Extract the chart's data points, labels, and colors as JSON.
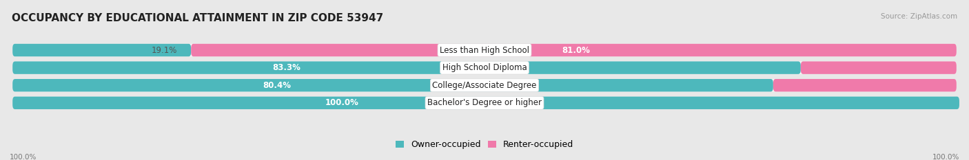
{
  "title": "OCCUPANCY BY EDUCATIONAL ATTAINMENT IN ZIP CODE 53947",
  "source": "Source: ZipAtlas.com",
  "categories": [
    "Less than High School",
    "High School Diploma",
    "College/Associate Degree",
    "Bachelor's Degree or higher"
  ],
  "owner_pct": [
    19.1,
    83.3,
    80.4,
    100.0
  ],
  "renter_pct": [
    81.0,
    16.7,
    19.6,
    0.0
  ],
  "owner_color": "#4db8bc",
  "renter_color": "#f07aaa",
  "bg_color": "#e8e8e8",
  "bar_bg_color": "#f7f7f7",
  "bar_height": 0.72,
  "title_fontsize": 11,
  "label_fontsize": 8.5,
  "pct_fontsize": 8.5,
  "legend_fontsize": 9,
  "axis_label_fontsize": 7.5,
  "source_fontsize": 7.5
}
